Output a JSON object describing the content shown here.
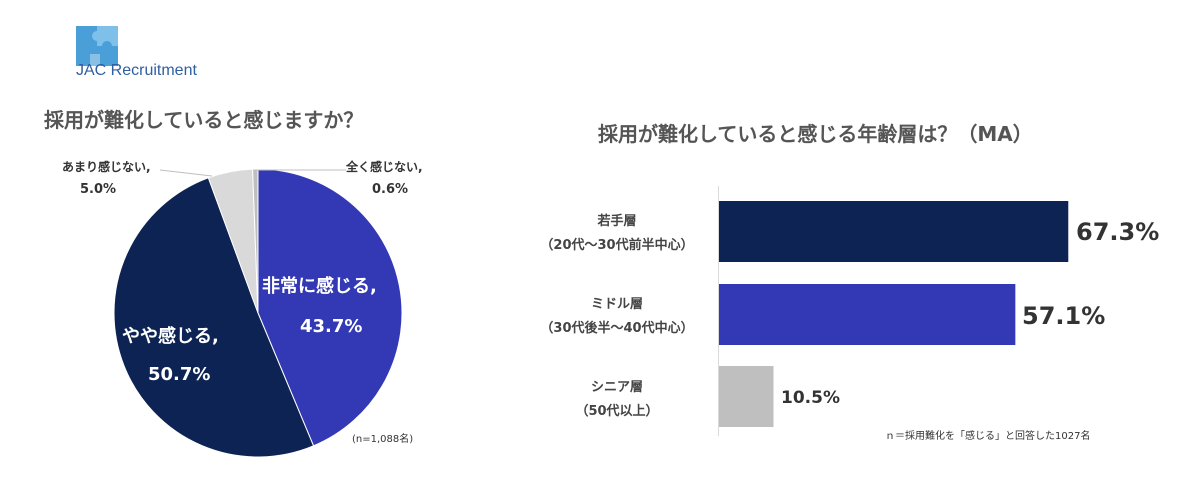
{
  "brand": {
    "logo_text": "JAC Recruitment",
    "logo_color": "#2f5fa0"
  },
  "chart_data": [
    {
      "type": "pie",
      "title": "採用が難化していると感じますか？",
      "note": "(n=1,088名)",
      "slices": [
        {
          "label": "非常に感じる,",
          "value": 43.7,
          "value_label": "43.7%",
          "color": "#3339b4"
        },
        {
          "label": "やや感じる,",
          "value": 50.7,
          "value_label": "50.7%",
          "color": "#0d2354"
        },
        {
          "label": "あまり感じない,",
          "value": 5.0,
          "value_label": "5.0%",
          "color": "#d9d9d9"
        },
        {
          "label": "全く感じない,",
          "value": 0.6,
          "value_label": "0.6%",
          "color": "#bfbfbf"
        }
      ]
    },
    {
      "type": "bar",
      "orientation": "horizontal",
      "title": "採用が難化していると感じる年齢層は？（MA）",
      "note": "ｎ＝採用難化を「感じる」と回答した1027名",
      "categories": [
        {
          "line1": "若手層",
          "line2": "（20代～30代前半中心）"
        },
        {
          "line1": "ミドル層",
          "line2": "（30代後半～40代中心）"
        },
        {
          "line1": "シニア層",
          "line2": "（50代以上）"
        }
      ],
      "values": [
        67.3,
        57.1,
        10.5
      ],
      "value_labels": [
        "67.3%",
        "57.1%",
        "10.5%"
      ],
      "colors": [
        "#0d2354",
        "#3339b4",
        "#bfbfbf"
      ]
    }
  ]
}
